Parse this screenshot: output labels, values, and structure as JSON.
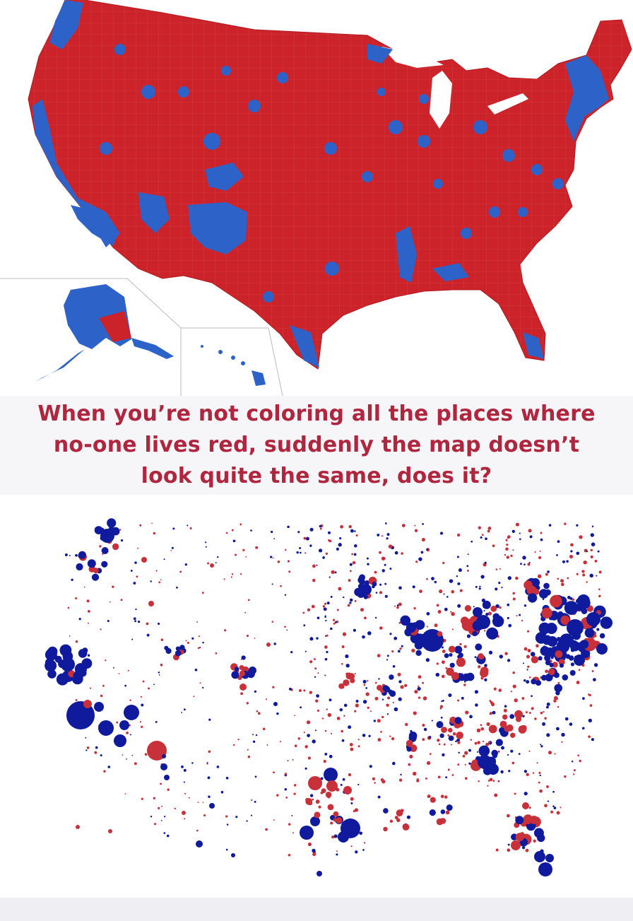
{
  "caption": {
    "lines": [
      "When you’re not coloring all the places where",
      "no-one lives red, suddenly the map doesn’t",
      "look quite the same, does it?"
    ]
  },
  "colors": {
    "republican_fill": "#cc2229",
    "democrat_fill": "#2d63c8",
    "bubble_red": "#c8303a",
    "bubble_blue": "#101a9c",
    "caption_text": "#b0263f",
    "background": "#ffffff"
  },
  "maps": {
    "top": {
      "kind": "county-choropleth",
      "regions": [
        "contiguous-us",
        "alaska-inset",
        "hawaii-inset"
      ]
    },
    "bottom": {
      "kind": "county-population-bubbles"
    }
  }
}
